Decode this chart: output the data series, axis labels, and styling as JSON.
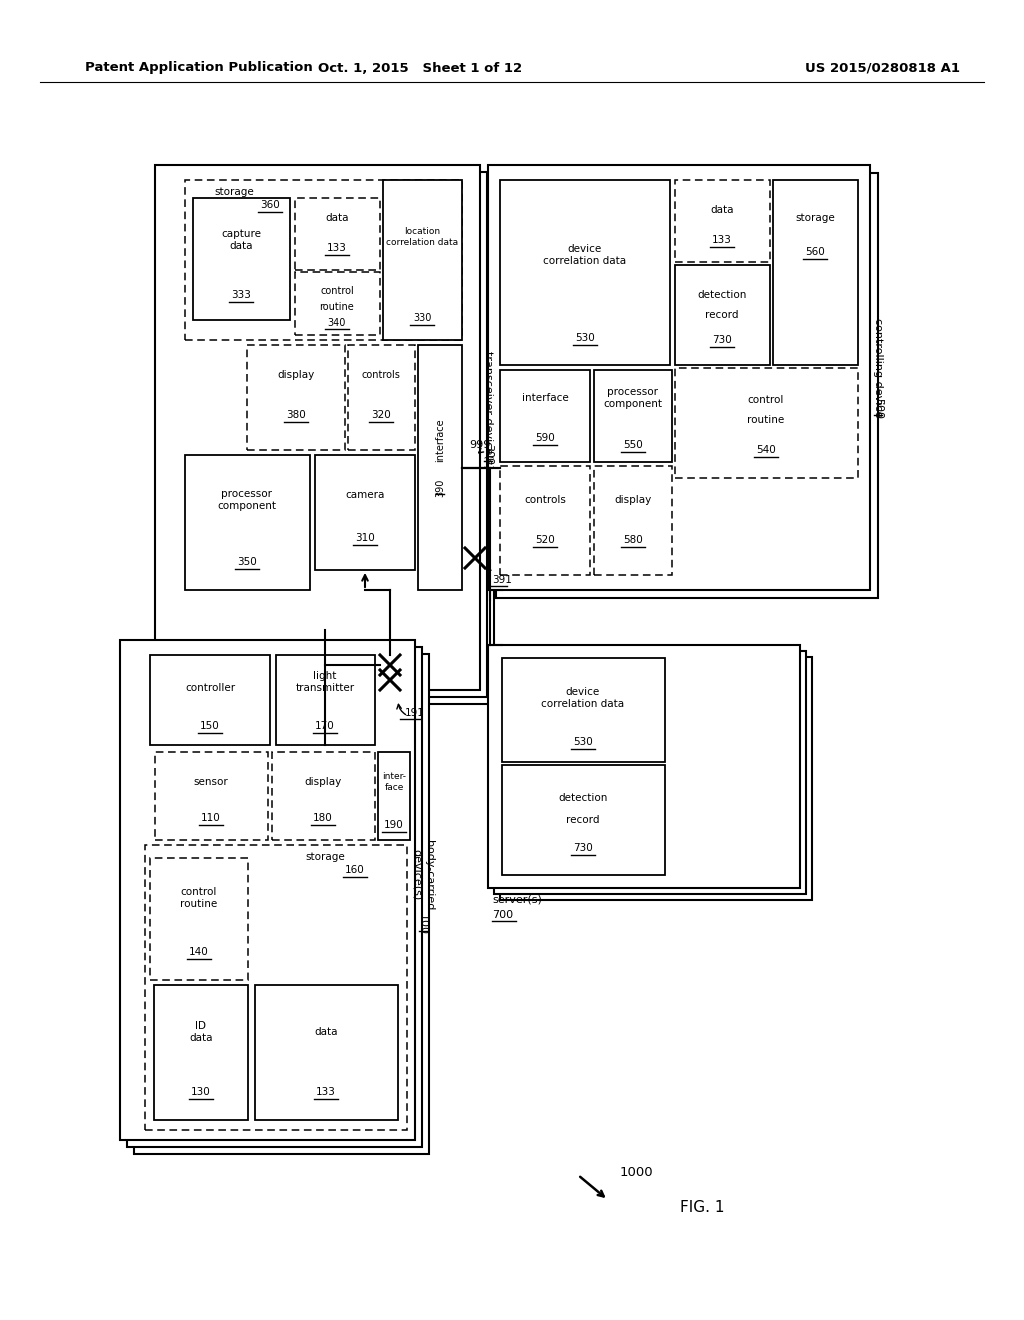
{
  "header_left": "Patent Application Publication",
  "header_mid": "Oct. 1, 2015   Sheet 1 of 12",
  "header_right": "US 2015/0280818 A1",
  "fig_label": "FIG. 1",
  "ref_1000": "1000",
  "bg": "#ffffff",
  "lc": "#000000"
}
